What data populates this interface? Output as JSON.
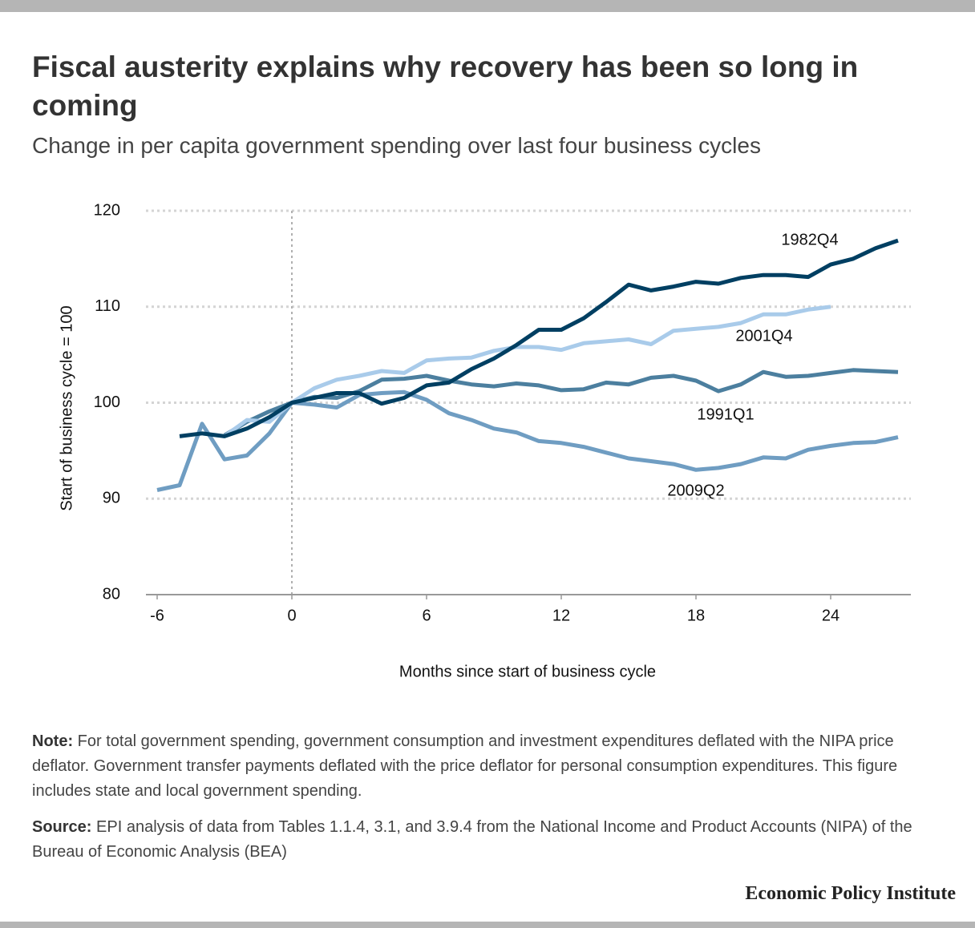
{
  "chart_data": {
    "type": "line",
    "title": "Fiscal austerity explains why recovery has been so long in coming",
    "subtitle": "Change in per capita government spending over last four business cycles",
    "xlabel": "Months since start of business cycle",
    "ylabel": "Start of business cycle = 100",
    "x": [
      -6,
      -5,
      -4,
      -3,
      -2,
      -1,
      0,
      1,
      2,
      3,
      4,
      5,
      6,
      7,
      8,
      9,
      10,
      11,
      12,
      13,
      14,
      15,
      16,
      17,
      18,
      19,
      20,
      21,
      22,
      23,
      24,
      25,
      26,
      27
    ],
    "series": [
      {
        "name": "1982Q4",
        "color": "#003f62",
        "values": [
          null,
          96.5,
          96.8,
          96.5,
          97.3,
          98.5,
          100,
          100.5,
          101,
          101,
          99.9,
          100.5,
          101.8,
          102.1,
          103.5,
          104.6,
          106,
          107.6,
          107.6,
          108.8,
          110.5,
          112.3,
          111.7,
          112.1,
          112.6,
          112.4,
          113,
          113.3,
          113.3,
          113.1,
          114.4,
          115,
          116.1,
          116.9
        ]
      },
      {
        "name": "2001Q4",
        "color": "#a9cbea",
        "values": [
          null,
          null,
          null,
          96.5,
          98.2,
          98.0,
          100,
          101.5,
          102.4,
          102.8,
          103.3,
          103.1,
          104.4,
          104.6,
          104.7,
          105.4,
          105.8,
          105.8,
          105.5,
          106.2,
          106.4,
          106.6,
          106.1,
          107.5,
          107.7,
          107.9,
          108.3,
          109.2,
          109.2,
          109.7,
          110.0,
          null,
          null,
          null
        ]
      },
      {
        "name": "1991Q1",
        "color": "#4c7f9f",
        "values": [
          null,
          null,
          null,
          96.6,
          98.0,
          99.1,
          100,
          100.6,
          100.5,
          101.2,
          102.4,
          102.5,
          102.8,
          102.3,
          101.9,
          101.7,
          102,
          101.8,
          101.3,
          101.4,
          102.1,
          101.9,
          102.6,
          102.8,
          102.3,
          101.2,
          101.9,
          103.2,
          102.7,
          102.8,
          103.1,
          103.4,
          103.3,
          103.2
        ]
      },
      {
        "name": "2009Q2",
        "color": "#6f9dc2",
        "values": [
          90.9,
          91.4,
          97.8,
          94.1,
          94.5,
          96.8,
          100,
          99.8,
          99.5,
          100.8,
          101.0,
          101.1,
          100.3,
          98.9,
          98.2,
          97.3,
          96.9,
          96.0,
          95.8,
          95.4,
          94.8,
          94.2,
          93.9,
          93.6,
          93.0,
          93.2,
          93.6,
          94.3,
          94.2,
          95.1,
          95.5,
          95.8,
          95.9,
          96.4
        ]
      }
    ],
    "xlim": [
      -6.5,
      27.5
    ],
    "xticks": [
      -6,
      0,
      6,
      12,
      18,
      24
    ],
    "ylim": [
      80,
      120
    ],
    "yticks": [
      80,
      90,
      100,
      110,
      120
    ],
    "grid": true,
    "note_label": "Note:",
    "note": "For total government spending, government consumption and investment expenditures deflated with the NIPA price deflator. Government transfer payments deflated with the price deflator for personal consumption expenditures. This figure includes state and local government spending.",
    "source_label": "Source:",
    "source": "EPI analysis of data from Tables 1.1.4, 3.1, and 3.9.4 from the National Income and Product Accounts (NIPA) of the Bureau of Economic Analysis (BEA)",
    "brand": "Economic Policy Institute"
  }
}
